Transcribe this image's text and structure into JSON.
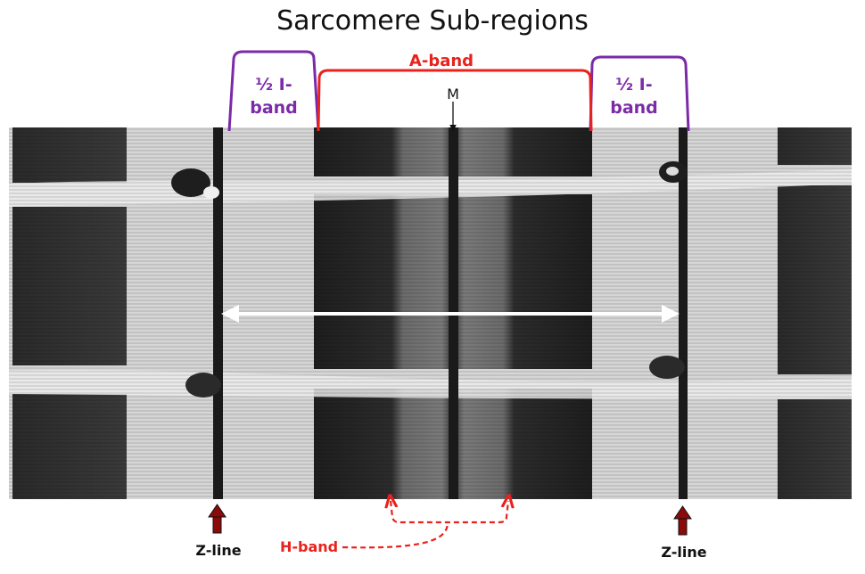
{
  "title": "Sarcomere Sub-regions",
  "labels": {
    "half_i_band_left": [
      "½ I-",
      "band"
    ],
    "half_i_band_right": [
      "½ I-",
      "band"
    ],
    "a_band": "A-band",
    "m_line": "M",
    "z_line_left": "Z-line",
    "z_line_right": "Z-line",
    "h_band": "H-band"
  },
  "colors": {
    "i_band": "#7b2aa8",
    "a_band": "#e8221c",
    "h_band": "#e8221c",
    "z_arrow": "#8b0a0a",
    "sarcomere_arrow": "#ffffff",
    "micrograph_light": "#d9d9d9",
    "micrograph_dark": "#2a2a2a"
  }
}
